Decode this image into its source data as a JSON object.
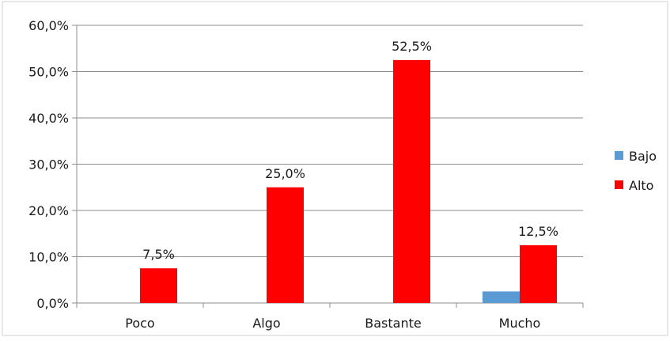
{
  "chart_data": {
    "type": "bar",
    "categories": [
      "Poco",
      "Algo",
      "Bastante",
      "Mucho"
    ],
    "series": [
      {
        "name": "Bajo",
        "color": "#5b9bd5",
        "values": [
          0,
          0,
          0,
          2.5
        ]
      },
      {
        "name": "Alto",
        "color": "#ff0000",
        "values": [
          7.5,
          25.0,
          52.5,
          12.5
        ]
      }
    ],
    "data_labels": {
      "Alto": [
        "7,5%",
        "25,0%",
        "52,5%",
        "12,5%"
      ]
    },
    "ylim": [
      0,
      60
    ],
    "y_ticks": [
      0,
      10,
      20,
      30,
      40,
      50,
      60
    ],
    "y_tick_labels": [
      "0,0%",
      "10,0%",
      "20,0%",
      "30,0%",
      "40,0%",
      "50,0%",
      "60,0%"
    ],
    "grid": true,
    "legend_position": "right",
    "title": "",
    "xlabel": "",
    "ylabel": ""
  }
}
